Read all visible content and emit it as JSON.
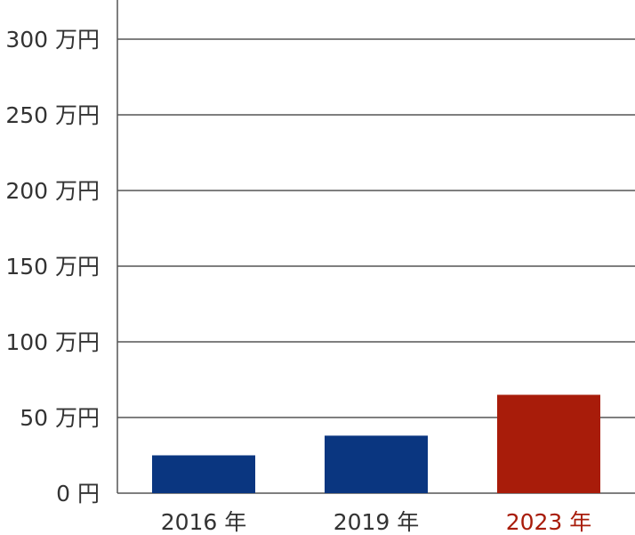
{
  "chart_data": {
    "type": "bar",
    "title": "",
    "xlabel": "",
    "ylabel": "",
    "categories": [
      "2016 年",
      "2019 年",
      "2023 年"
    ],
    "values": [
      25,
      38,
      65
    ],
    "ylim": [
      0,
      300
    ],
    "yticks": [
      0,
      50,
      100,
      150,
      200,
      250,
      300
    ],
    "ytick_labels": [
      "0 円",
      "50 万円",
      "100 万円",
      "150 万円",
      "200 万円",
      "250 万円",
      "300 万円"
    ],
    "grid": true,
    "legend": "none",
    "colors": {
      "bars": [
        "#0a3680",
        "#0a3680",
        "#a81c0a"
      ],
      "category_labels": [
        "#333333",
        "#333333",
        "#a81c0a"
      ],
      "gridline": "#555555",
      "axis": "#555555",
      "tick_text": "#333333"
    }
  }
}
